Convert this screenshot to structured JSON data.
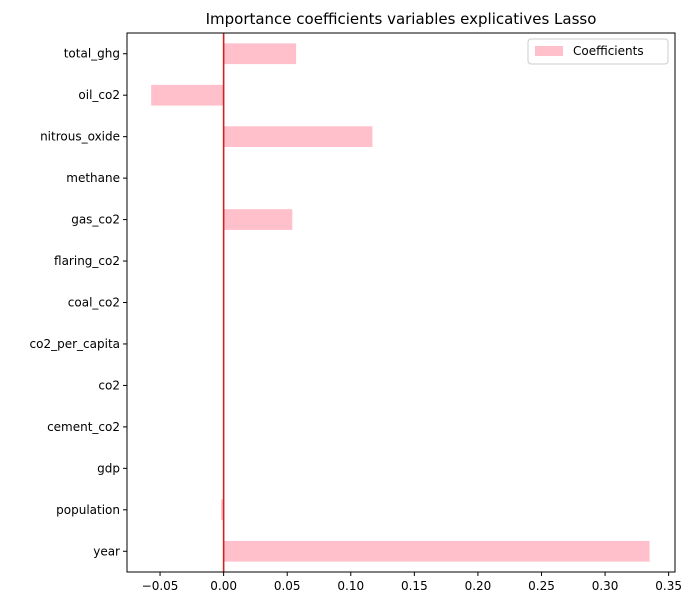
{
  "chart_data": {
    "type": "bar",
    "orientation": "horizontal",
    "title": "Importance coefficients variables explicatives Lasso",
    "xlabel": "",
    "ylabel": "",
    "categories": [
      "year",
      "population",
      "gdp",
      "cement_co2",
      "co2",
      "co2_per_capita",
      "coal_co2",
      "flaring_co2",
      "gas_co2",
      "methane",
      "nitrous_oxide",
      "oil_co2",
      "total_ghg"
    ],
    "series": [
      {
        "name": "Coefficients",
        "color": "#ffc0cb",
        "values": [
          0.335,
          -0.002,
          0.0,
          0.0,
          0.0,
          0.0,
          0.0,
          0.0,
          0.054,
          0.0,
          0.117,
          -0.057,
          0.057
        ]
      }
    ],
    "xlim": [
      -0.076,
      0.355
    ],
    "xticks": [
      -0.05,
      0.0,
      0.05,
      0.1,
      0.15,
      0.2,
      0.25,
      0.3,
      0.35
    ],
    "xtick_labels": [
      "−0.05",
      "0.00",
      "0.05",
      "0.10",
      "0.15",
      "0.20",
      "0.25",
      "0.30",
      "0.35"
    ],
    "reference_line": {
      "x": 0,
      "color": "#d62020"
    },
    "legend": {
      "position": "top-right",
      "entries": [
        "Coefficients"
      ]
    },
    "grid": false
  }
}
